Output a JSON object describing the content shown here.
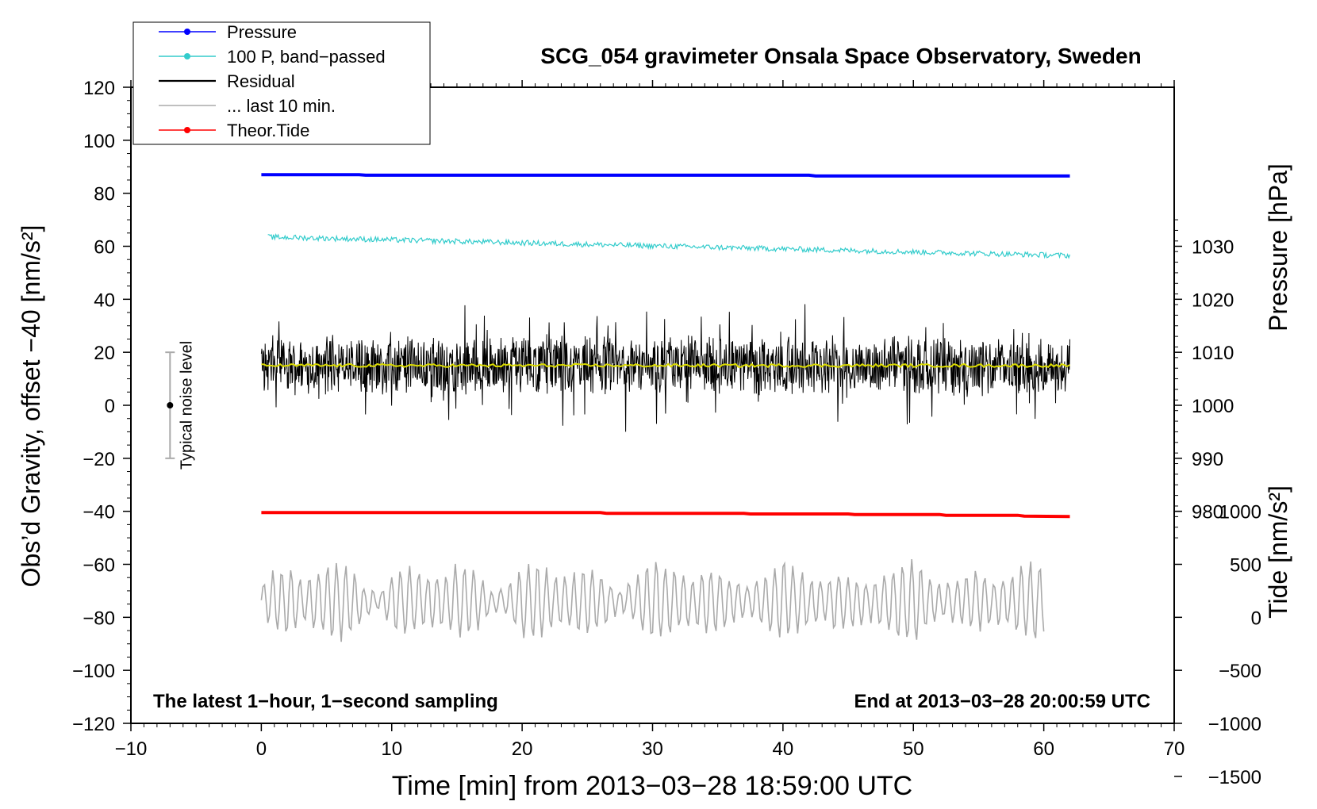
{
  "chart_data": {
    "type": "line",
    "title": "SCG_054 gravimeter Onsala Space Observatory, Sweden",
    "xlabel": "Time [min] from 2013−03−28 18:59:00 UTC",
    "ylabel_left": "Obs’d Gravity, offset −40 [nm/s²]",
    "ylabel_right_top": "Pressure [hPa]",
    "ylabel_right_bottom": "Tide [nm/s²]",
    "xlim": [
      -10,
      70
    ],
    "ylim_left": [
      -120,
      120
    ],
    "x_ticks": [
      {
        "v": -10,
        "label": "−10"
      },
      {
        "v": 0,
        "label": "0"
      },
      {
        "v": 10,
        "label": "10"
      },
      {
        "v": 20,
        "label": "20"
      },
      {
        "v": 30,
        "label": "30"
      },
      {
        "v": 40,
        "label": "40"
      },
      {
        "v": 50,
        "label": "50"
      },
      {
        "v": 60,
        "label": "60"
      },
      {
        "v": 70,
        "label": "70"
      }
    ],
    "y_ticks_left": [
      {
        "v": 120,
        "label": "120"
      },
      {
        "v": 100,
        "label": "100"
      },
      {
        "v": 80,
        "label": "80"
      },
      {
        "v": 60,
        "label": "60"
      },
      {
        "v": 40,
        "label": "40"
      },
      {
        "v": 20,
        "label": "20"
      },
      {
        "v": 0,
        "label": "0"
      },
      {
        "v": -20,
        "label": "−20"
      },
      {
        "v": -40,
        "label": "−40"
      },
      {
        "v": -60,
        "label": "−60"
      },
      {
        "v": -80,
        "label": "−80"
      },
      {
        "v": -100,
        "label": "−100"
      },
      {
        "v": -120,
        "label": "−120"
      }
    ],
    "pressure_axis_ticks": [
      {
        "v": 1030,
        "label": "1030"
      },
      {
        "v": 1020,
        "label": "1020"
      },
      {
        "v": 1010,
        "label": "1010"
      },
      {
        "v": 1000,
        "label": "1000"
      },
      {
        "v": 990,
        "label": "990"
      },
      {
        "v": 980,
        "label": "980"
      }
    ],
    "tide_axis_ticks": [
      {
        "v": 1000,
        "label": "1000"
      },
      {
        "v": 500,
        "label": "500"
      },
      {
        "v": 0,
        "label": "0"
      },
      {
        "v": -500,
        "label": "−500"
      },
      {
        "v": -1000,
        "label": "−1000"
      },
      {
        "v": -1500,
        "label": "−1500"
      }
    ],
    "series": [
      {
        "name": "Pressure",
        "color": "#0000ff",
        "x": [
          0,
          7.5,
          8,
          42,
          42.5,
          62
        ],
        "y": [
          87.0,
          87.0,
          86.8,
          86.8,
          86.5,
          86.5
        ]
      },
      {
        "name": "100 P, band−passed",
        "color": "#33cccc",
        "x_start": 0.5,
        "x_end": 62,
        "y_start": 63.5,
        "y_end": 56.5,
        "noise": 1.0
      },
      {
        "name": "Residual",
        "color": "#000000",
        "x_start": 0,
        "x_end": 62,
        "center": 15,
        "y_max": 40,
        "y_min": -10
      },
      {
        "name": "... last 10 min.",
        "color": "#aaaaaa",
        "x_start": 0,
        "x_end": 60,
        "center": -74,
        "y_max": -55,
        "y_min": -94
      },
      {
        "name": "Theor.Tide",
        "color": "#ff0000",
        "x": [
          0,
          26,
          26.5,
          37,
          37.5,
          45,
          45.5,
          52,
          52.5,
          58,
          58.5,
          62
        ],
        "y": [
          -40.5,
          -40.5,
          -40.8,
          -40.8,
          -41.0,
          -41.0,
          -41.2,
          -41.2,
          -41.5,
          -41.5,
          -41.8,
          -42.0
        ]
      },
      {
        "name": "mean",
        "color": "#dddd00",
        "x_start": 0,
        "x_end": 62,
        "center": 15
      }
    ],
    "noise_bar": {
      "label": "Typical noise level",
      "x": -7,
      "center": 0,
      "low": -20,
      "high": 20
    },
    "annotations": {
      "left": "The latest 1−hour, 1−second sampling",
      "right": "End at 2013−03−28 20:00:59 UTC"
    },
    "legend": {
      "position": "top-left",
      "entries": [
        {
          "label": "Pressure",
          "color": "#0000ff",
          "marker": true
        },
        {
          "label": "100 P, band−passed",
          "color": "#33cccc",
          "marker": true
        },
        {
          "label": "Residual",
          "color": "#000000",
          "marker": false
        },
        {
          "label": "... last 10 min.",
          "color": "#aaaaaa",
          "marker": false
        },
        {
          "label": "Theor.Tide",
          "color": "#ff0000",
          "marker": true
        }
      ]
    }
  }
}
